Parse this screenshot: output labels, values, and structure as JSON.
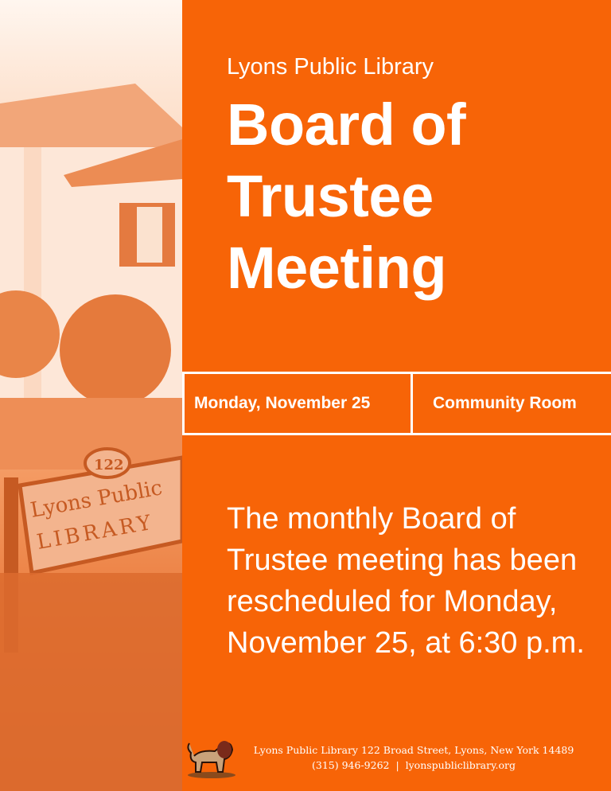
{
  "header": {
    "organization": "Lyons Public Library"
  },
  "title": {
    "line1": "Board of",
    "line2": "Trustee",
    "line3": "Meeting"
  },
  "info": {
    "date": "Monday, November 25",
    "location": "Community Room"
  },
  "body": {
    "text": "The monthly Board of Trustee meeting has been rescheduled for Monday, November 25, at 6:30 p.m."
  },
  "footer": {
    "address": "Lyons Public Library 122 Broad Street, Lyons, New York 14489",
    "phone": "(315) 946-9262",
    "separator": "|",
    "website": "lyonspubliclibrary.org"
  },
  "sign": {
    "number": "122",
    "line1": "Lyons Public",
    "line2": "LIBRARY"
  },
  "colors": {
    "accent": "#f76407",
    "text": "#ffffff"
  },
  "icons": {
    "logo": "lion-icon"
  }
}
